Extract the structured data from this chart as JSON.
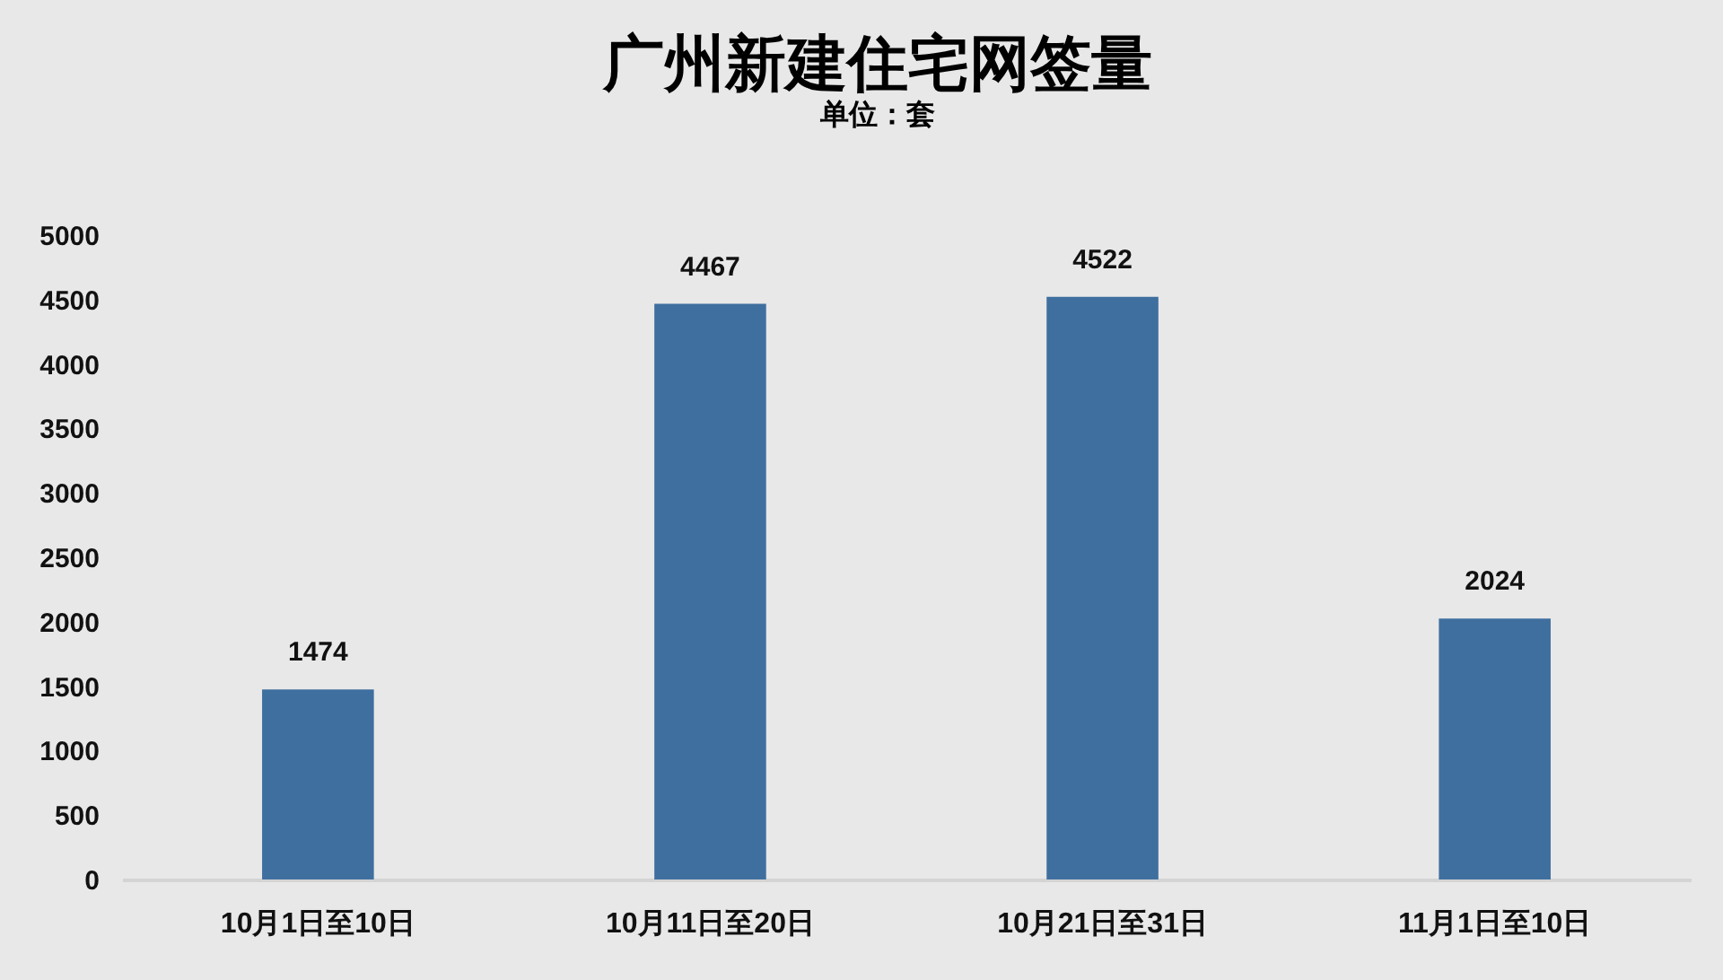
{
  "chart_data": {
    "type": "bar",
    "title": "广州新建住宅网签量",
    "subtitle": "单位：套",
    "categories": [
      "10月1日至10日",
      "10月11日至20日",
      "10月21日至31日",
      "11月1日至10日"
    ],
    "values": [
      1474,
      4467,
      4522,
      2024
    ],
    "color": "#3f6f9f",
    "ylim": [
      0,
      5000
    ],
    "yticks": [
      0,
      500,
      1000,
      1500,
      2000,
      2500,
      3000,
      3500,
      4000,
      4500,
      5000
    ],
    "data_labels": true
  }
}
